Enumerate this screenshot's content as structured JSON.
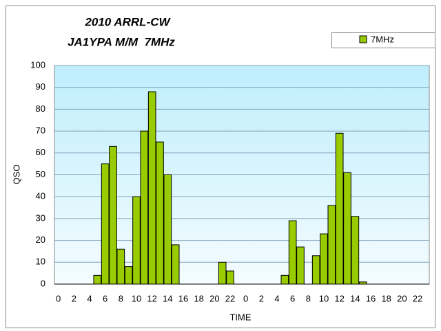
{
  "chart_data": {
    "type": "bar",
    "title": "2010 ARRL-CW",
    "subtitle": "JA1YPA M/M  7MHz",
    "x_label": "TIME",
    "y_label": "QSO",
    "categories": [
      "0",
      null,
      "2",
      null,
      "4",
      null,
      "6",
      null,
      "8",
      null,
      "10",
      null,
      "12",
      null,
      "14",
      null,
      "16",
      null,
      "18",
      null,
      "20",
      null,
      "22",
      null,
      "0",
      null,
      "2",
      null,
      "4",
      null,
      "6",
      null,
      "8",
      null,
      "10",
      null,
      "12",
      null,
      "14",
      null,
      "16",
      null,
      "18",
      null,
      "20",
      null,
      "22",
      null
    ],
    "series": [
      {
        "name": "7MHz",
        "color": "#99cc00",
        "values": [
          0,
          0,
          0,
          0,
          0,
          4,
          55,
          63,
          16,
          8,
          40,
          70,
          88,
          65,
          50,
          18,
          0,
          0,
          0,
          0,
          0,
          10,
          6,
          0,
          0,
          0,
          0,
          0,
          0,
          4,
          29,
          17,
          0,
          13,
          23,
          36,
          69,
          51,
          31,
          1,
          0,
          0,
          0,
          0,
          0,
          0,
          0,
          0
        ]
      }
    ],
    "ylim": [
      0,
      100
    ],
    "yticks": [
      0,
      10,
      20,
      30,
      40,
      50,
      60,
      70,
      80,
      90,
      100
    ],
    "grid": true,
    "legend": "top-right"
  }
}
